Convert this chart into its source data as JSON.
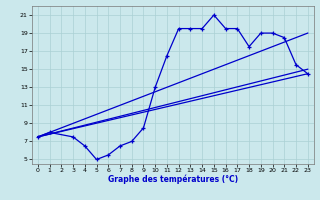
{
  "xlabel": "Graphe des températures (°C)",
  "bg_color": "#cbe8ec",
  "grid_color": "#aad0d5",
  "line_color": "#0000cc",
  "xlim": [
    -0.5,
    23.5
  ],
  "ylim": [
    4.5,
    22.0
  ],
  "xticks": [
    0,
    1,
    2,
    3,
    4,
    5,
    6,
    7,
    8,
    9,
    10,
    11,
    12,
    13,
    14,
    15,
    16,
    17,
    18,
    19,
    20,
    21,
    22,
    23
  ],
  "yticks": [
    5,
    7,
    9,
    11,
    13,
    15,
    17,
    19,
    21
  ],
  "curve_x": [
    0,
    1,
    3,
    4,
    5,
    6,
    7,
    8,
    9,
    10,
    11,
    12,
    13,
    14,
    15,
    16,
    17,
    18,
    19,
    20,
    21,
    22,
    23
  ],
  "curve_y": [
    7.5,
    8.0,
    7.5,
    6.5,
    5.0,
    5.5,
    6.5,
    7.0,
    8.5,
    13.0,
    16.5,
    19.5,
    19.5,
    19.5,
    21.0,
    19.5,
    19.5,
    17.5,
    19.0,
    19.0,
    18.5,
    15.5,
    14.5
  ],
  "line2_x": [
    0,
    23
  ],
  "line2_y": [
    7.5,
    19.0
  ],
  "line3_x": [
    0,
    23
  ],
  "line3_y": [
    7.5,
    15.0
  ],
  "line4_x": [
    0,
    23
  ],
  "line4_y": [
    7.5,
    14.5
  ]
}
